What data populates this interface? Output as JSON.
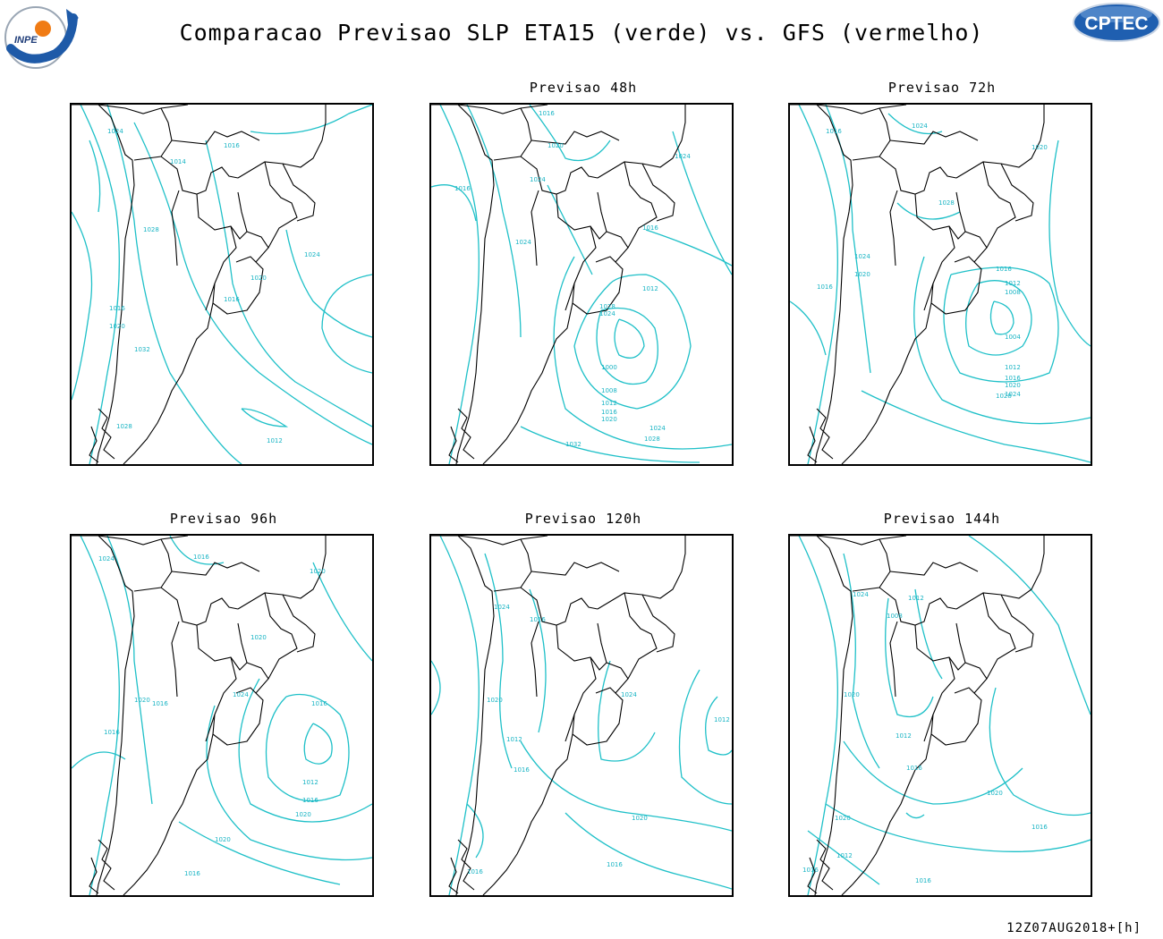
{
  "title": "Comparacao Previsao SLP ETA15 (verde) vs. GFS (vermelho)",
  "logos": {
    "left": "INPE",
    "right": "CPTEC"
  },
  "colors": {
    "isobar": "#1fc0c8",
    "isobar_label": "#18b4c4",
    "coast": "#000000",
    "inpe_blue": "#1e5aa8",
    "inpe_orange": "#f07b14",
    "cptec_blue": "#1f5fb0"
  },
  "panels": [
    {
      "title": "",
      "labels": [
        "1024",
        "1016",
        "1014",
        "1028",
        "1020",
        "1024",
        "1016",
        "1016",
        "1020",
        "1032",
        "1028",
        "1012"
      ]
    },
    {
      "title": "Previsao 48h",
      "labels": [
        "1016",
        "1020",
        "1024",
        "1016",
        "1024",
        "1024",
        "1016",
        "1012",
        "1028",
        "1024",
        "1000",
        "1008",
        "1012",
        "1016",
        "1020",
        "1024",
        "1028",
        "1032"
      ]
    },
    {
      "title": "Previsao 72h",
      "labels": [
        "1024",
        "1016",
        "1020",
        "1028",
        "1024",
        "1020",
        "1016",
        "1016",
        "1012",
        "1008",
        "1004",
        "1012",
        "1016",
        "1020",
        "1024",
        "1028"
      ]
    },
    {
      "title": "Previsao 96h",
      "labels": [
        "1024",
        "1016",
        "1020",
        "1020",
        "1020",
        "1016",
        "1016",
        "1024",
        "1016",
        "1012",
        "1016",
        "1020",
        "1020",
        "1016"
      ]
    },
    {
      "title": "Previsao 120h",
      "labels": [
        "1024",
        "1016",
        "1020",
        "1024",
        "1012",
        "1012",
        "1016",
        "1020",
        "1016",
        "1016"
      ]
    },
    {
      "title": "Previsao 144h",
      "labels": [
        "1024",
        "1012",
        "1008",
        "1020",
        "1012",
        "1016",
        "1020",
        "1016",
        "1020",
        "1012",
        "1016",
        "1016"
      ]
    }
  ],
  "footer": "12Z07AUG2018+[h]"
}
